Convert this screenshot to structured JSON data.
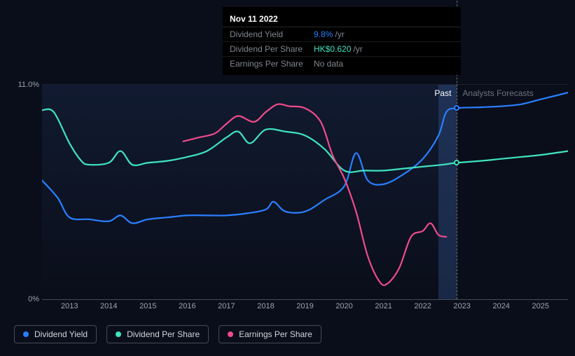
{
  "tooltip": {
    "date": "Nov 11 2022",
    "rows": [
      {
        "label": "Dividend Yield",
        "value": "9.8%",
        "suffix": "/yr",
        "color": "#2a7fff"
      },
      {
        "label": "Dividend Per Share",
        "value": "HK$0.620",
        "suffix": "/yr",
        "color": "#3fe3c0"
      },
      {
        "label": "Earnings Per Share",
        "value": "No data",
        "suffix": "",
        "color": "#808690"
      }
    ]
  },
  "chart": {
    "type": "line",
    "background_color": "#0a0e1a",
    "x_years": [
      2013,
      2014,
      2015,
      2016,
      2017,
      2018,
      2019,
      2020,
      2021,
      2022,
      2023,
      2024,
      2025
    ],
    "x_domain": [
      2012.3,
      2025.7
    ],
    "y_domain": [
      0,
      11.0
    ],
    "y_ticks": [
      {
        "v": 11.0,
        "label": "11.0%"
      },
      {
        "v": 0,
        "label": "0%"
      }
    ],
    "past_future_split_year": 2022.87,
    "highlight_band": [
      2022.4,
      2022.87
    ],
    "cursor_year": 2022.87,
    "zone_labels": {
      "past": {
        "text": "Past",
        "color": "#ffffff"
      },
      "forecast": {
        "text": "Analysts Forecasts",
        "color": "#6b7280"
      }
    },
    "markers": [
      {
        "year": 2022.87,
        "y": 9.8,
        "color": "#2a7fff"
      },
      {
        "year": 2022.87,
        "y": 7.0,
        "color": "#3fe3c0"
      }
    ],
    "series": [
      {
        "name": "Dividend Yield",
        "color": "#2a7fff",
        "width": 2.2,
        "points": [
          [
            2012.3,
            6.1
          ],
          [
            2012.7,
            5.2
          ],
          [
            2013.0,
            4.2
          ],
          [
            2013.5,
            4.1
          ],
          [
            2014.0,
            4.0
          ],
          [
            2014.3,
            4.3
          ],
          [
            2014.6,
            3.9
          ],
          [
            2015.0,
            4.1
          ],
          [
            2015.5,
            4.2
          ],
          [
            2016.0,
            4.3
          ],
          [
            2016.5,
            4.3
          ],
          [
            2017.0,
            4.3
          ],
          [
            2017.5,
            4.4
          ],
          [
            2018.0,
            4.6
          ],
          [
            2018.2,
            5.0
          ],
          [
            2018.5,
            4.5
          ],
          [
            2019.0,
            4.5
          ],
          [
            2019.5,
            5.1
          ],
          [
            2020.0,
            5.8
          ],
          [
            2020.3,
            7.5
          ],
          [
            2020.6,
            6.1
          ],
          [
            2021.0,
            5.9
          ],
          [
            2021.5,
            6.4
          ],
          [
            2022.0,
            7.2
          ],
          [
            2022.4,
            8.4
          ],
          [
            2022.6,
            9.6
          ],
          [
            2022.87,
            9.8
          ],
          [
            2023.5,
            9.85
          ],
          [
            2024.0,
            9.9
          ],
          [
            2024.5,
            10.0
          ],
          [
            2025.0,
            10.25
          ],
          [
            2025.7,
            10.6
          ]
        ]
      },
      {
        "name": "Dividend Per Share",
        "color": "#3fe3c0",
        "width": 2.2,
        "points": [
          [
            2012.3,
            9.7
          ],
          [
            2012.6,
            9.6
          ],
          [
            2013.0,
            8.0
          ],
          [
            2013.3,
            7.1
          ],
          [
            2013.5,
            6.9
          ],
          [
            2014.0,
            7.0
          ],
          [
            2014.3,
            7.6
          ],
          [
            2014.6,
            6.9
          ],
          [
            2015.0,
            7.0
          ],
          [
            2015.5,
            7.1
          ],
          [
            2016.0,
            7.3
          ],
          [
            2016.5,
            7.6
          ],
          [
            2017.0,
            8.3
          ],
          [
            2017.3,
            8.6
          ],
          [
            2017.6,
            8.0
          ],
          [
            2018.0,
            8.7
          ],
          [
            2018.5,
            8.6
          ],
          [
            2019.0,
            8.4
          ],
          [
            2019.5,
            7.7
          ],
          [
            2020.0,
            6.6
          ],
          [
            2020.5,
            6.6
          ],
          [
            2021.0,
            6.6
          ],
          [
            2021.5,
            6.7
          ],
          [
            2022.0,
            6.8
          ],
          [
            2022.5,
            6.9
          ],
          [
            2022.87,
            7.0
          ],
          [
            2023.5,
            7.1
          ],
          [
            2024.0,
            7.2
          ],
          [
            2024.5,
            7.3
          ],
          [
            2025.0,
            7.4
          ],
          [
            2025.7,
            7.6
          ]
        ]
      },
      {
        "name": "Earnings Per Share",
        "color": "#ef4b8b",
        "width": 2.2,
        "points": [
          [
            2015.9,
            8.1
          ],
          [
            2016.3,
            8.3
          ],
          [
            2016.7,
            8.5
          ],
          [
            2017.0,
            9.0
          ],
          [
            2017.3,
            9.4
          ],
          [
            2017.7,
            9.1
          ],
          [
            2018.0,
            9.6
          ],
          [
            2018.3,
            10.0
          ],
          [
            2018.6,
            9.9
          ],
          [
            2019.0,
            9.8
          ],
          [
            2019.4,
            9.1
          ],
          [
            2019.7,
            7.4
          ],
          [
            2020.0,
            6.2
          ],
          [
            2020.3,
            4.5
          ],
          [
            2020.6,
            2.2
          ],
          [
            2020.9,
            0.9
          ],
          [
            2021.1,
            0.8
          ],
          [
            2021.4,
            1.6
          ],
          [
            2021.7,
            3.2
          ],
          [
            2022.0,
            3.5
          ],
          [
            2022.2,
            3.9
          ],
          [
            2022.4,
            3.3
          ],
          [
            2022.6,
            3.2
          ]
        ]
      }
    ]
  },
  "legend": [
    {
      "label": "Dividend Yield",
      "color": "#2a7fff"
    },
    {
      "label": "Dividend Per Share",
      "color": "#3fe3c0"
    },
    {
      "label": "Earnings Per Share",
      "color": "#ef4b8b"
    }
  ]
}
